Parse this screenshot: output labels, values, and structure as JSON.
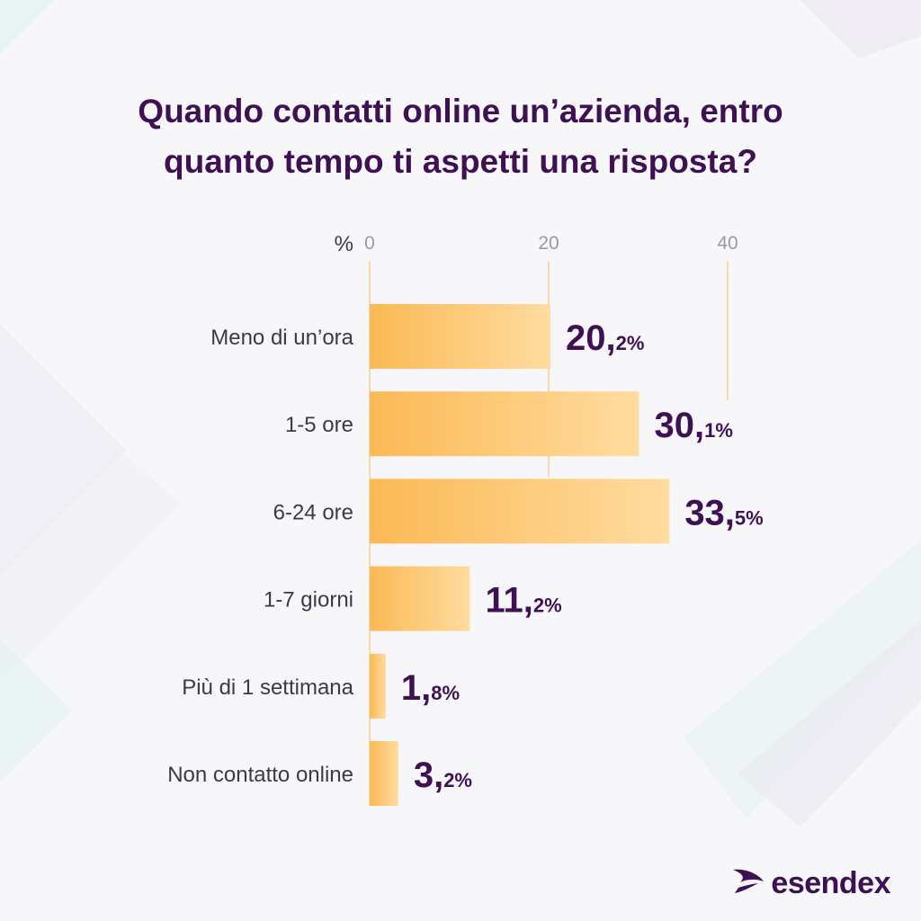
{
  "colors": {
    "title": "#3d1152",
    "bar_start": "#fbb955",
    "bar_end": "#ffdca0",
    "gridline": "#f6cf8c",
    "label": "#3a3a48",
    "tick": "#9a9aa6"
  },
  "chart_data": {
    "type": "bar",
    "orientation": "horizontal",
    "title_lines": [
      "Quando contatti online un’azienda, entro",
      "quanto tempo ti aspetti una risposta?"
    ],
    "axis_unit": "%",
    "xlim": [
      0,
      40
    ],
    "xticks": [
      "0",
      "20",
      "40"
    ],
    "grid": true,
    "categories": [
      "Meno di un’ora",
      "1-5 ore",
      "6-24 ore",
      "1-7 giorni",
      "Più di 1 settimana",
      "Non contatto online"
    ],
    "values": [
      20.2,
      30.1,
      33.5,
      11.2,
      1.8,
      3.2
    ],
    "value_labels": [
      {
        "int": "20,",
        "dec": "2%"
      },
      {
        "int": "30,",
        "dec": "1%"
      },
      {
        "int": "33,",
        "dec": "5%"
      },
      {
        "int": "11,",
        "dec": "2%"
      },
      {
        "int": "1,",
        "dec": "8%"
      },
      {
        "int": "3,",
        "dec": "2%"
      }
    ]
  },
  "brand": {
    "name": "esendex",
    "icon": "esendex-swoosh-icon"
  }
}
